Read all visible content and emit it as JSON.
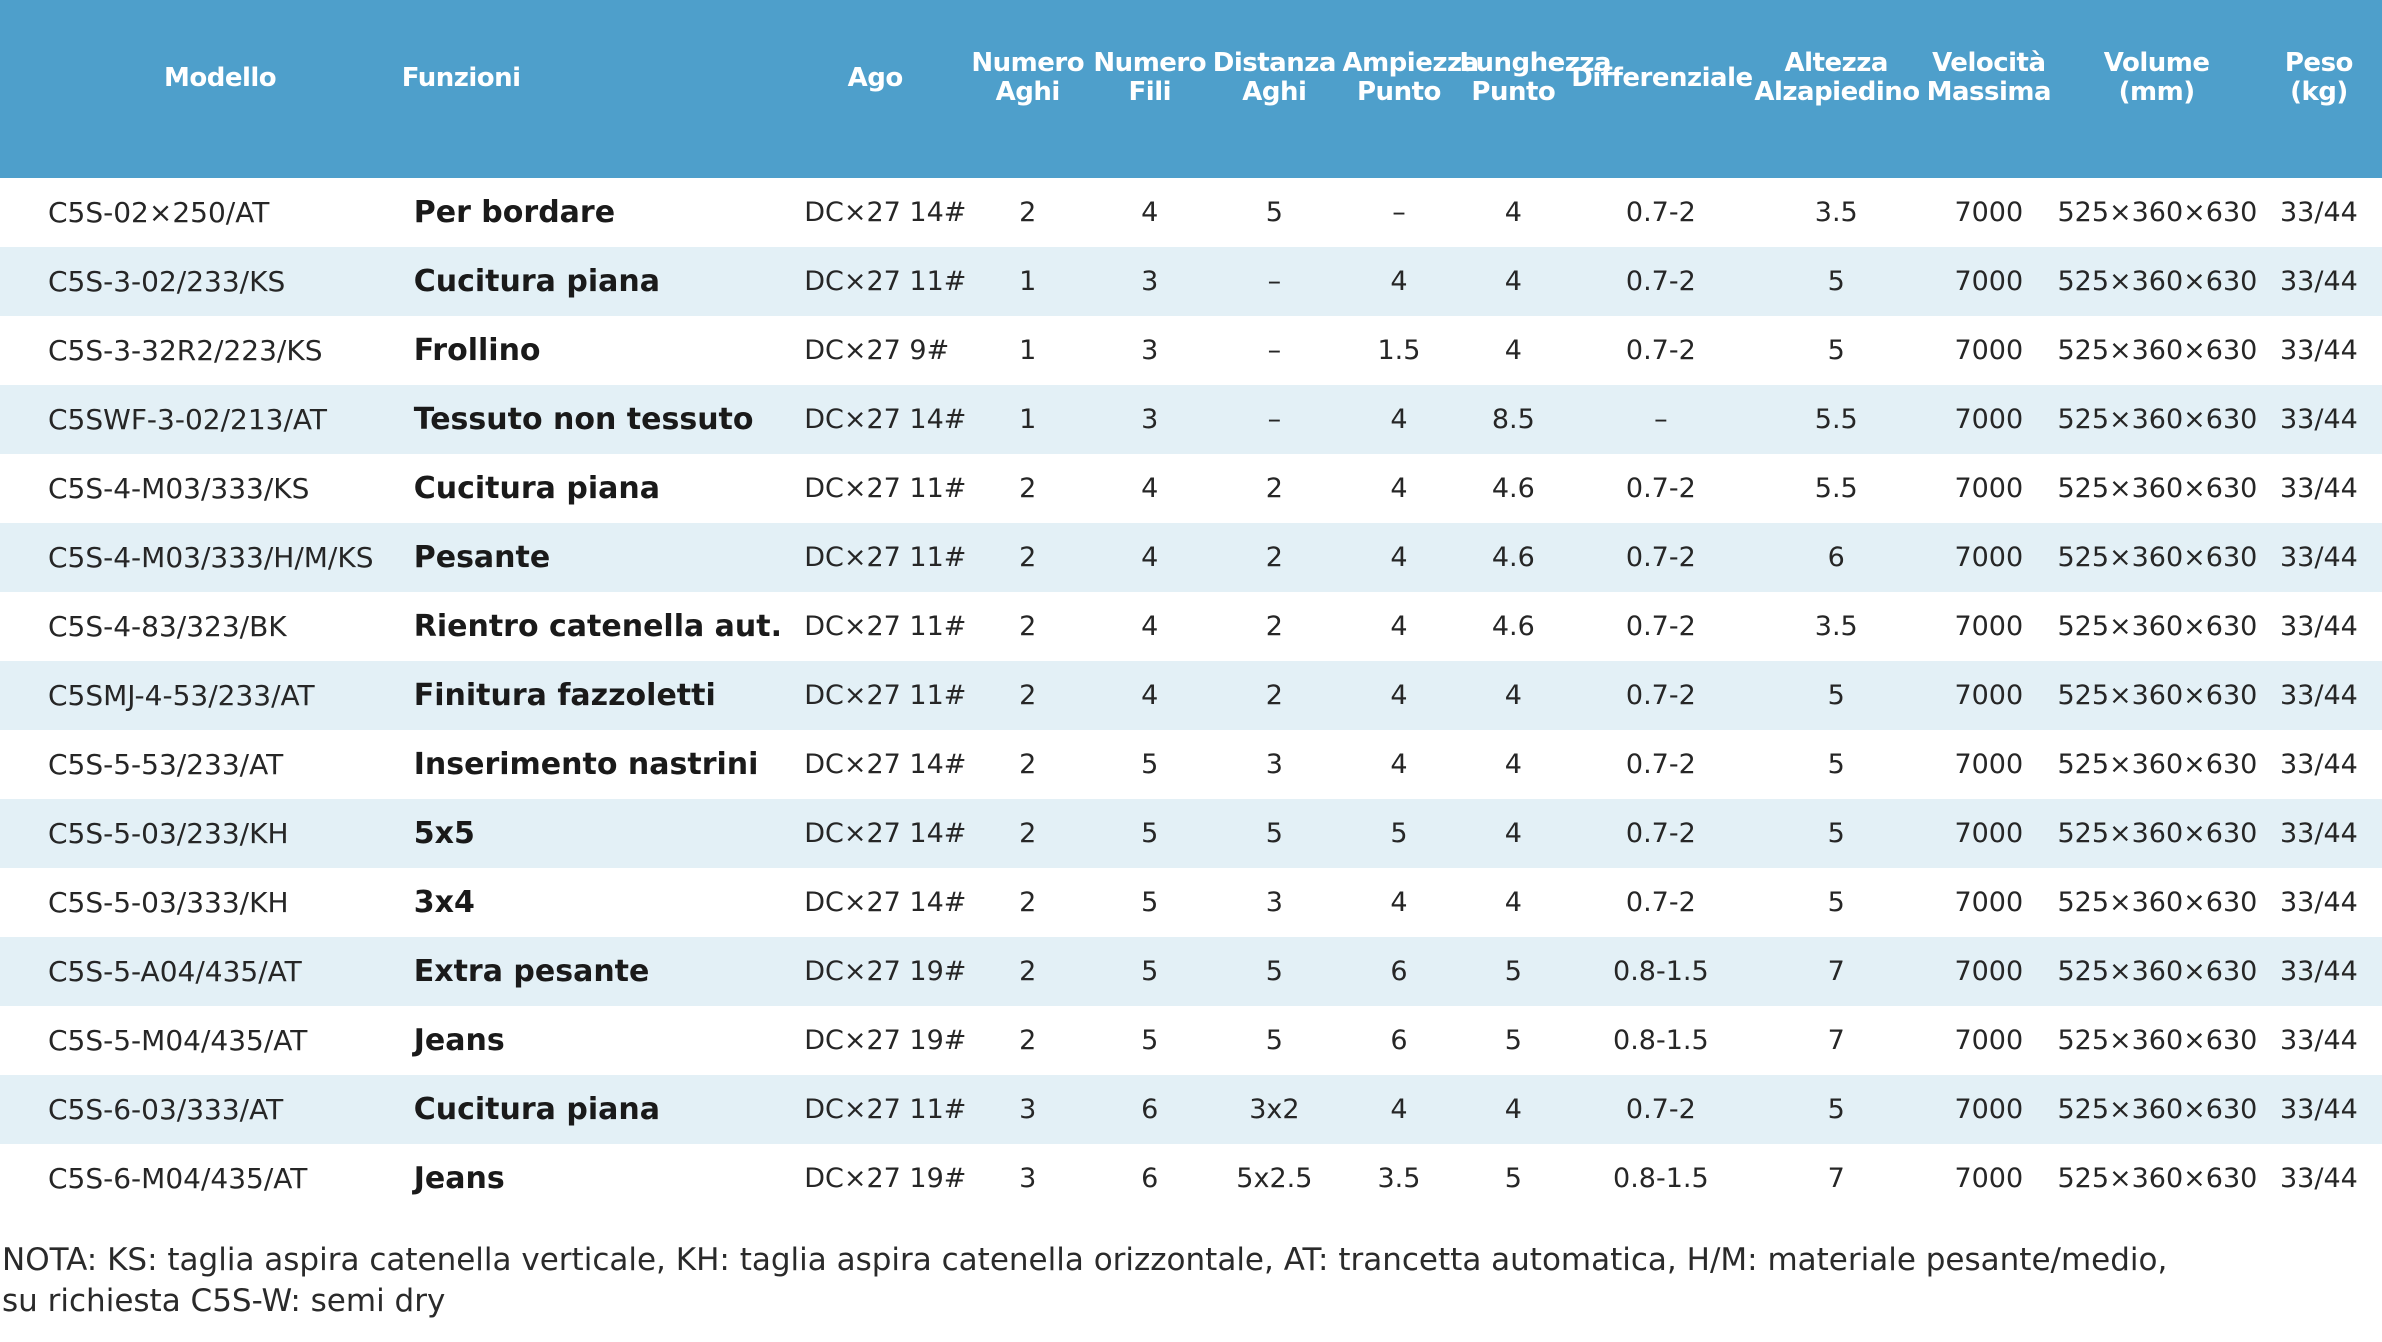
{
  "table": {
    "headers": [
      "Modello",
      "Funzioni",
      "Ago",
      "Numero\nAghi",
      "Numero\nFili",
      "Distanza\nAghi",
      "Ampiezza\nPunto",
      "Lunghezza\nPunto",
      "Differenziale",
      "Altezza\nAlzapiedino",
      "Velocità\nMassima",
      "Volume\n(mm)",
      "Peso\n(kg)"
    ],
    "rows": [
      [
        "C5S-02×250/AT",
        "Per bordare",
        "DC×27 14#",
        "2",
        "4",
        "5",
        "–",
        "4",
        "0.7-2",
        "3.5",
        "7000",
        "525×360×630",
        "33/44"
      ],
      [
        "C5S-3-02/233/KS",
        "Cucitura piana",
        "DC×27 11#",
        "1",
        "3",
        "–",
        "4",
        "4",
        "0.7-2",
        "5",
        "7000",
        "525×360×630",
        "33/44"
      ],
      [
        "C5S-3-32R2/223/KS",
        "Frollino",
        "DC×27 9#",
        "1",
        "3",
        "–",
        "1.5",
        "4",
        "0.7-2",
        "5",
        "7000",
        "525×360×630",
        "33/44"
      ],
      [
        "C5SWF-3-02/213/AT",
        "Tessuto non tessuto",
        "DC×27 14#",
        "1",
        "3",
        "–",
        "4",
        "8.5",
        "–",
        "5.5",
        "7000",
        "525×360×630",
        "33/44"
      ],
      [
        "C5S-4-M03/333/KS",
        "Cucitura piana",
        "DC×27 11#",
        "2",
        "4",
        "2",
        "4",
        "4.6",
        "0.7-2",
        "5.5",
        "7000",
        "525×360×630",
        "33/44"
      ],
      [
        "C5S-4-M03/333/H/M/KS",
        "Pesante",
        "DC×27 11#",
        "2",
        "4",
        "2",
        "4",
        "4.6",
        "0.7-2",
        "6",
        "7000",
        "525×360×630",
        "33/44"
      ],
      [
        "C5S-4-83/323/BK",
        "Rientro catenella aut.",
        "DC×27 11#",
        "2",
        "4",
        "2",
        "4",
        "4.6",
        "0.7-2",
        "3.5",
        "7000",
        "525×360×630",
        "33/44"
      ],
      [
        "C5SMJ-4-53/233/AT",
        "Finitura fazzoletti",
        "DC×27 11#",
        "2",
        "4",
        "2",
        "4",
        "4",
        "0.7-2",
        "5",
        "7000",
        "525×360×630",
        "33/44"
      ],
      [
        "C5S-5-53/233/AT",
        "Inserimento nastrini",
        "DC×27 14#",
        "2",
        "5",
        "3",
        "4",
        "4",
        "0.7-2",
        "5",
        "7000",
        "525×360×630",
        "33/44"
      ],
      [
        "C5S-5-03/233/KH",
        "5x5",
        "DC×27 14#",
        "2",
        "5",
        "5",
        "5",
        "4",
        "0.7-2",
        "5",
        "7000",
        "525×360×630",
        "33/44"
      ],
      [
        "C5S-5-03/333/KH",
        "3x4",
        "DC×27 14#",
        "2",
        "5",
        "3",
        "4",
        "4",
        "0.7-2",
        "5",
        "7000",
        "525×360×630",
        "33/44"
      ],
      [
        "C5S-5-A04/435/AT",
        "Extra pesante",
        "DC×27 19#",
        "2",
        "5",
        "5",
        "6",
        "5",
        "0.8-1.5",
        "7",
        "7000",
        "525×360×630",
        "33/44"
      ],
      [
        "C5S-5-M04/435/AT",
        "Jeans",
        "DC×27 19#",
        "2",
        "5",
        "5",
        "6",
        "5",
        "0.8-1.5",
        "7",
        "7000",
        "525×360×630",
        "33/44"
      ],
      [
        "C5S-6-03/333/AT",
        "Cucitura piana",
        "DC×27 11#",
        "3",
        "6",
        "3x2",
        "4",
        "4",
        "0.7-2",
        "5",
        "7000",
        "525×360×630",
        "33/44"
      ],
      [
        "C5S-6-M04/435/AT",
        "Jeans",
        "DC×27 19#",
        "3",
        "6",
        "5x2.5",
        "3.5",
        "5",
        "0.8-1.5",
        "7",
        "7000",
        "525×360×630",
        "33/44"
      ]
    ]
  },
  "note": {
    "line1": "NOTA: KS: taglia aspira catenella verticale, KH: taglia aspira catenella orizzontale, AT: trancetta automatica, H/M: materiale pesante/medio,",
    "line2": "su richiesta C5S-W: semi dry"
  },
  "colors": {
    "header_bg": "#4e9fcb",
    "header_text": "#ffffff",
    "row_alt_bg": "#e3f0f6",
    "row_bg": "#ffffff"
  }
}
